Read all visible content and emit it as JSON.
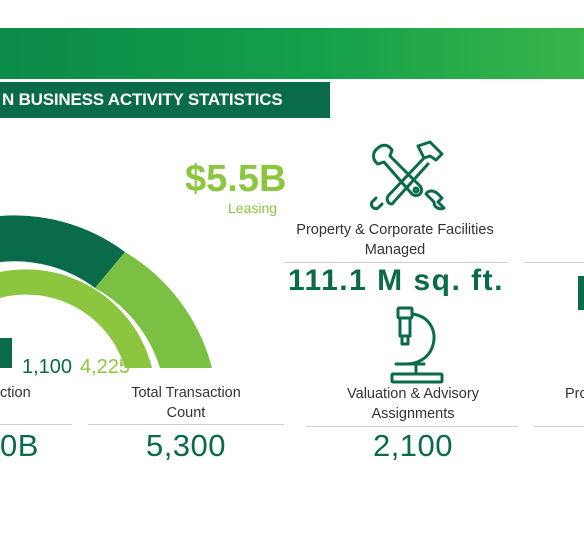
{
  "header": {
    "title": "N BUSINESS ACTIVITY STATISTICS"
  },
  "leasing": {
    "value": "$5.5B",
    "label": "Leasing"
  },
  "ring": {
    "outer_value": "1,100",
    "inner_value": "4,225",
    "colors": {
      "dark": "#0a6b4a",
      "light": "#7ac143"
    }
  },
  "stats": {
    "transaction": {
      "caption": "ction",
      "value": "0B"
    },
    "total_transaction": {
      "caption_line1": "Total Transaction",
      "caption_line2": "Count",
      "value": "5,300"
    },
    "facilities": {
      "caption_line1": "Property & Corporate Facilities",
      "caption_line2": "Managed",
      "value": "111.1 M sq. ft.",
      "icon": "tools-icon"
    },
    "valuation": {
      "caption_line1": "Valuation & Advisory",
      "caption_line2": "Assignments",
      "value": "2,100",
      "icon": "microscope-icon"
    },
    "right_partial": {
      "caption": "Pro"
    }
  },
  "colors": {
    "brand_dark": "#0a6b4a",
    "brand_light": "#8cc63f",
    "bar_start": "#0b8a48",
    "bar_end": "#39b54a"
  }
}
